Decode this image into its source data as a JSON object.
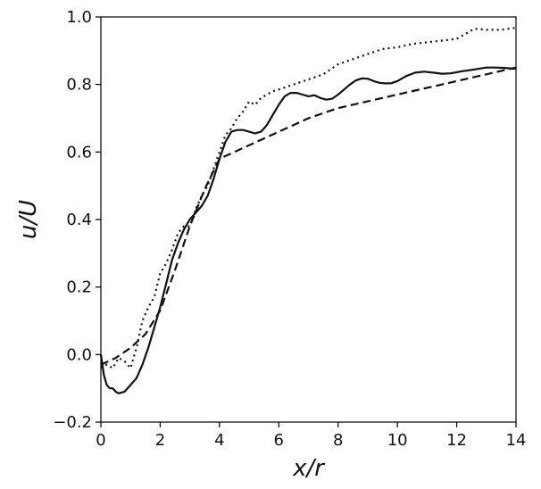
{
  "chart_data": {
    "type": "line",
    "xlabel": "x/r",
    "ylabel": "u/U",
    "xlim": [
      0,
      14
    ],
    "ylim": [
      -0.2,
      1.0
    ],
    "xticks": [
      0,
      2,
      4,
      6,
      8,
      10,
      12,
      14
    ],
    "yticks": [
      -0.2,
      0.0,
      0.2,
      0.4,
      0.6,
      0.8,
      1.0
    ],
    "xtick_labels": [
      "0",
      "2",
      "4",
      "6",
      "8",
      "10",
      "12",
      "14"
    ],
    "ytick_labels": [
      "−0.2",
      "0.0",
      "0.2",
      "0.4",
      "0.6",
      "0.8",
      "1.0"
    ],
    "grid": false,
    "series": [
      {
        "style": "solid",
        "color": "#111111",
        "x": [
          0,
          0.1,
          0.2,
          0.3,
          0.4,
          0.5,
          0.6,
          0.8,
          1.0,
          1.2,
          1.4,
          1.6,
          1.8,
          2.0,
          2.2,
          2.4,
          2.6,
          2.8,
          3.0,
          3.2,
          3.4,
          3.6,
          3.8,
          4.0,
          4.2,
          4.4,
          4.6,
          4.8,
          5.0,
          5.2,
          5.4,
          5.6,
          5.8,
          6.0,
          6.2,
          6.4,
          6.6,
          6.8,
          7.0,
          7.2,
          7.4,
          7.6,
          7.8,
          8.0,
          8.2,
          8.4,
          8.6,
          8.8,
          9.0,
          9.2,
          9.4,
          9.6,
          9.8,
          10.0,
          10.3,
          10.6,
          10.9,
          11.2,
          11.5,
          11.8,
          12.1,
          12.4,
          12.7,
          13.0,
          13.3,
          13.6,
          13.9,
          14.0
        ],
        "y": [
          0.0,
          -0.06,
          -0.09,
          -0.1,
          -0.1,
          -0.11,
          -0.115,
          -0.11,
          -0.09,
          -0.07,
          -0.03,
          0.02,
          0.08,
          0.14,
          0.21,
          0.28,
          0.33,
          0.37,
          0.4,
          0.42,
          0.44,
          0.47,
          0.52,
          0.58,
          0.63,
          0.66,
          0.665,
          0.665,
          0.66,
          0.655,
          0.66,
          0.68,
          0.71,
          0.74,
          0.765,
          0.775,
          0.775,
          0.77,
          0.765,
          0.768,
          0.76,
          0.755,
          0.758,
          0.77,
          0.785,
          0.8,
          0.812,
          0.818,
          0.817,
          0.81,
          0.805,
          0.803,
          0.804,
          0.81,
          0.825,
          0.835,
          0.838,
          0.835,
          0.832,
          0.833,
          0.838,
          0.842,
          0.846,
          0.85,
          0.85,
          0.849,
          0.847,
          0.847
        ]
      },
      {
        "style": "dashed",
        "color": "#111111",
        "x": [
          0,
          0.5,
          1.0,
          1.5,
          2.0,
          2.5,
          3.0,
          3.5,
          4.0,
          4.5,
          5.0,
          5.5,
          6.0,
          6.5,
          7.0,
          8.0,
          9.0,
          10.0,
          11.0,
          12.0,
          13.0,
          14.0
        ],
        "y": [
          -0.03,
          -0.01,
          0.02,
          0.06,
          0.13,
          0.25,
          0.38,
          0.49,
          0.58,
          0.6,
          0.62,
          0.64,
          0.66,
          0.68,
          0.7,
          0.73,
          0.75,
          0.77,
          0.79,
          0.81,
          0.83,
          0.85
        ]
      },
      {
        "style": "dotted",
        "color": "#111111",
        "x": [
          0,
          0.2,
          0.4,
          0.6,
          0.8,
          1.0,
          1.2,
          1.4,
          1.6,
          1.8,
          2.0,
          2.2,
          2.4,
          2.6,
          2.8,
          3.0,
          3.2,
          3.4,
          3.6,
          3.8,
          4.0,
          4.2,
          4.4,
          4.6,
          4.8,
          5.0,
          5.2,
          5.4,
          5.6,
          5.8,
          6.0,
          6.5,
          7.0,
          7.5,
          8.0,
          8.5,
          9.0,
          9.5,
          10.0,
          10.5,
          11.0,
          11.5,
          12.0,
          12.3,
          12.6,
          13.0,
          13.5,
          14.0
        ],
        "y": [
          -0.04,
          -0.03,
          -0.04,
          -0.01,
          -0.02,
          -0.04,
          0.02,
          0.1,
          0.14,
          0.17,
          0.24,
          0.27,
          0.31,
          0.36,
          0.38,
          0.38,
          0.43,
          0.47,
          0.5,
          0.55,
          0.6,
          0.65,
          0.67,
          0.7,
          0.72,
          0.75,
          0.74,
          0.76,
          0.77,
          0.78,
          0.785,
          0.8,
          0.815,
          0.83,
          0.86,
          0.875,
          0.89,
          0.905,
          0.91,
          0.92,
          0.925,
          0.93,
          0.935,
          0.95,
          0.965,
          0.962,
          0.962,
          0.968
        ]
      }
    ]
  }
}
